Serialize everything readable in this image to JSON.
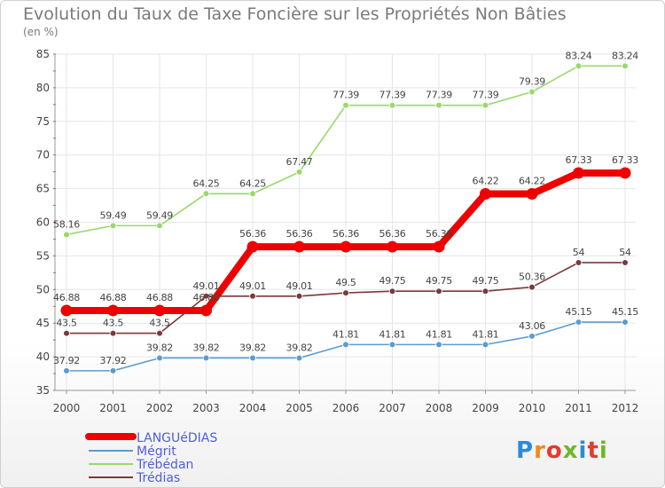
{
  "chart_data": {
    "type": "line",
    "title": "Evolution du Taux de Taxe Foncière sur les Propriétés Non Bâties",
    "subtitle": "(en %)",
    "categories": [
      "2000",
      "2001",
      "2002",
      "2003",
      "2004",
      "2005",
      "2006",
      "2007",
      "2008",
      "2009",
      "2010",
      "2011",
      "2012"
    ],
    "ylim": [
      35,
      85
    ],
    "yticks": [
      35,
      40,
      45,
      50,
      55,
      60,
      65,
      70,
      75,
      80,
      85
    ],
    "series": [
      {
        "name": "Trébédan",
        "color": "#99d86a",
        "values": [
          58.16,
          59.49,
          59.49,
          64.25,
          64.25,
          67.47,
          77.39,
          77.39,
          77.39,
          77.39,
          79.39,
          83.24,
          83.24
        ],
        "labels": [
          "58.16",
          "59.49",
          "59.49",
          "64.25",
          "64.25",
          "67.47",
          "77.39",
          "77.39",
          "77.39",
          "77.39",
          "79.39",
          "83.24",
          "83.24"
        ]
      },
      {
        "name": "Trédias",
        "color": "#7a3a3a",
        "values": [
          43.5,
          43.5,
          43.5,
          49.01,
          49.01,
          49.01,
          49.5,
          49.75,
          49.75,
          49.75,
          50.36,
          54,
          54
        ],
        "labels": [
          "43.5",
          "43.5",
          "43.5",
          "49.01",
          "49.01",
          "49.01",
          "49.5",
          "49.75",
          "49.75",
          "49.75",
          "50.36",
          "54",
          "54"
        ]
      },
      {
        "name": "Mégrit",
        "color": "#5b9bd0",
        "values": [
          37.92,
          37.92,
          39.82,
          39.82,
          39.82,
          39.82,
          41.81,
          41.81,
          41.81,
          41.81,
          43.06,
          45.15,
          45.15
        ],
        "labels": [
          "37.92",
          "37.92",
          "39.82",
          "39.82",
          "39.82",
          "39.82",
          "41.81",
          "41.81",
          "41.81",
          "41.81",
          "43.06",
          "45.15",
          "45.15"
        ]
      },
      {
        "name": "LANGUéDIAS",
        "color": "#ee0000",
        "values": [
          46.88,
          46.88,
          46.88,
          46.88,
          56.36,
          56.36,
          56.36,
          56.36,
          56.36,
          64.22,
          64.22,
          67.33,
          67.33
        ],
        "labels": [
          "46.88",
          "46.88",
          "46.88",
          "46.88",
          "56.36",
          "56.36",
          "56.36",
          "56.36",
          "56.36",
          "64.22",
          "64.22",
          "67.33",
          "67.33"
        ]
      }
    ],
    "legend": [
      "LANGUéDIAS",
      "Mégrit",
      "Trébédan",
      "Trédias"
    ],
    "legend_position": "bottom-left"
  },
  "logo": {
    "text": "Proxiti"
  }
}
